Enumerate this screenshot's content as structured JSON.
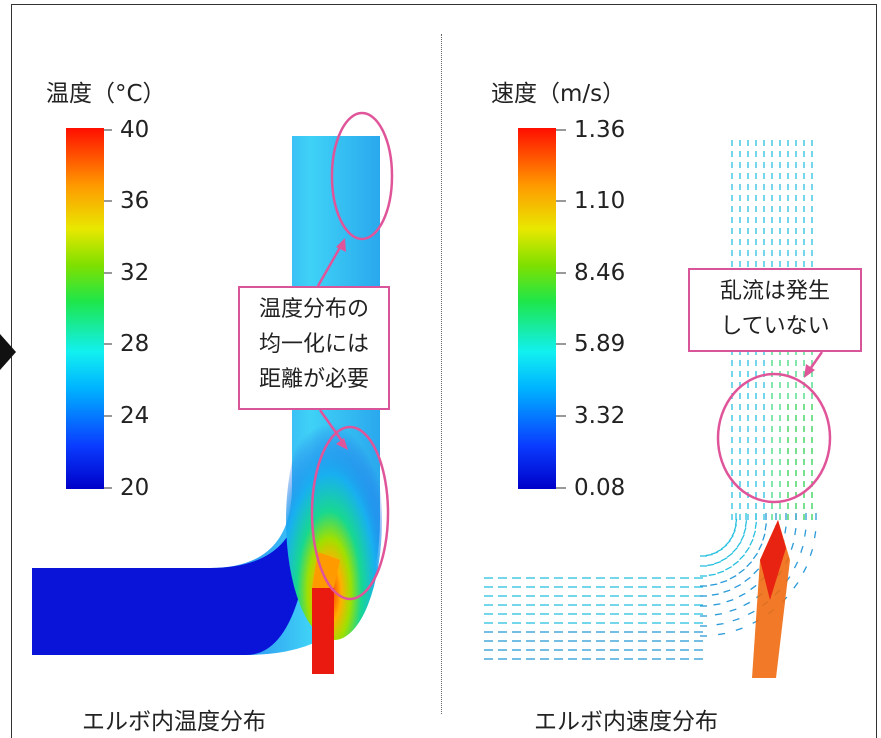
{
  "left_panel": {
    "legend_title": "温度（°C）",
    "ticks": [
      "40",
      "36",
      "32",
      "28",
      "24",
      "20"
    ],
    "callout_lines": [
      "温度分布の",
      "均一化には",
      "距離が必要"
    ],
    "caption": "エルボ内温度分布"
  },
  "right_panel": {
    "legend_title": "速度（m/s）",
    "ticks": [
      "1.36",
      "1.10",
      "8.46",
      "5.89",
      "3.32",
      "0.08"
    ],
    "callout_lines": [
      "乱流は発生",
      "していない"
    ],
    "caption": "エルボ内速度分布"
  },
  "colors": {
    "annotation": "#e0559a",
    "pipe_cold": "#0a14d8",
    "hot": "#e81a10"
  }
}
